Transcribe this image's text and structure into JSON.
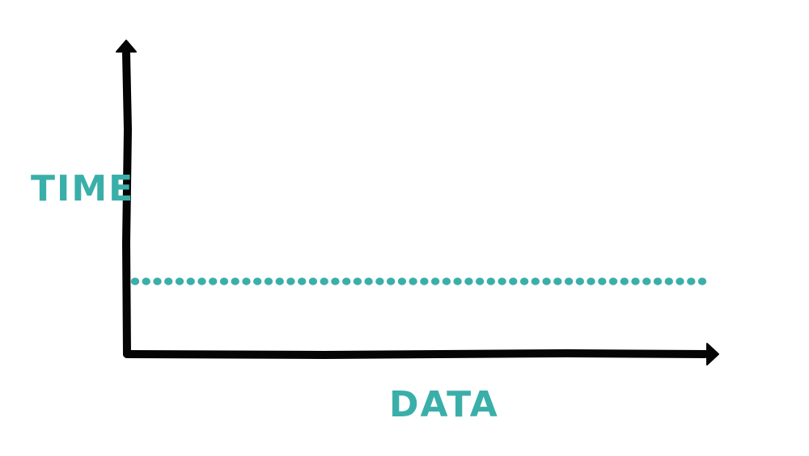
{
  "chart_data": {
    "type": "line",
    "title": "",
    "xlabel": "DATA",
    "ylabel": "TIME",
    "xlim": [
      0,
      1
    ],
    "ylim": [
      0,
      1
    ],
    "grid": false,
    "series": [
      {
        "x": [
          0,
          1
        ],
        "values": [
          0.25,
          0.25
        ],
        "style": "dotted"
      }
    ]
  },
  "colors": {
    "accent": "#3aafa9",
    "axis": "#050505",
    "background": "#ffffff"
  }
}
